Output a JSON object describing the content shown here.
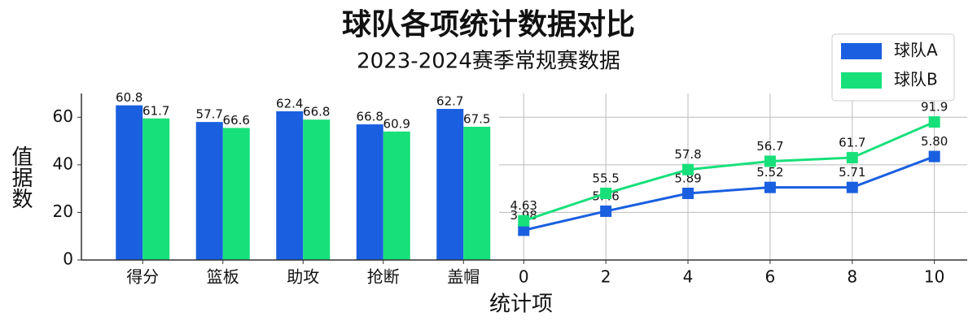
{
  "chart_data": [
    {
      "type": "bar",
      "title": "球队各项统计数据对比",
      "subtitle": "2023-2024赛季常规赛数据",
      "y_label": "值据数",
      "x_label": "统计项",
      "categories": [
        "得分",
        "篮板",
        "助攻",
        "抢断",
        "盖帽"
      ],
      "series": [
        {
          "color": "#1a5fe0",
          "values": [
            65,
            58,
            62.5,
            57,
            63.5
          ],
          "annotations": [
            "60.8",
            "57.7",
            "62.4",
            "66.8",
            "62.7"
          ]
        },
        {
          "color": "#17e07a",
          "values": [
            59.5,
            55.5,
            59,
            54,
            56
          ],
          "annotations": [
            "61.7",
            "66.6",
            "66.8",
            "60.9",
            "67.5"
          ]
        }
      ],
      "ylim": [
        0,
        70
      ],
      "yticks": [
        0,
        20,
        40,
        60
      ]
    },
    {
      "type": "line",
      "x": [
        0,
        2,
        4,
        6,
        8,
        10
      ],
      "series": [
        {
          "name": "球队A",
          "color": "#1a5fe0",
          "values": [
            12.5,
            20.5,
            28,
            30.5,
            30.5,
            43.5
          ],
          "annotations": [
            "3.98",
            "5.46",
            "5.89",
            "5.52",
            "5.71",
            "5.80"
          ]
        },
        {
          "name": "球队B",
          "color": "#17e07a",
          "values": [
            16.5,
            28,
            38,
            41.5,
            43,
            58
          ],
          "annotations": [
            "4.63",
            "55.5",
            "57.8",
            "56.7",
            "61.7",
            "91.9"
          ]
        }
      ],
      "xlim": [
        -0.6,
        10.8
      ],
      "xticks": [
        0,
        2,
        4,
        6,
        8,
        10
      ],
      "ylim": [
        0,
        70
      ],
      "grid": true,
      "legend": "upper right"
    }
  ]
}
